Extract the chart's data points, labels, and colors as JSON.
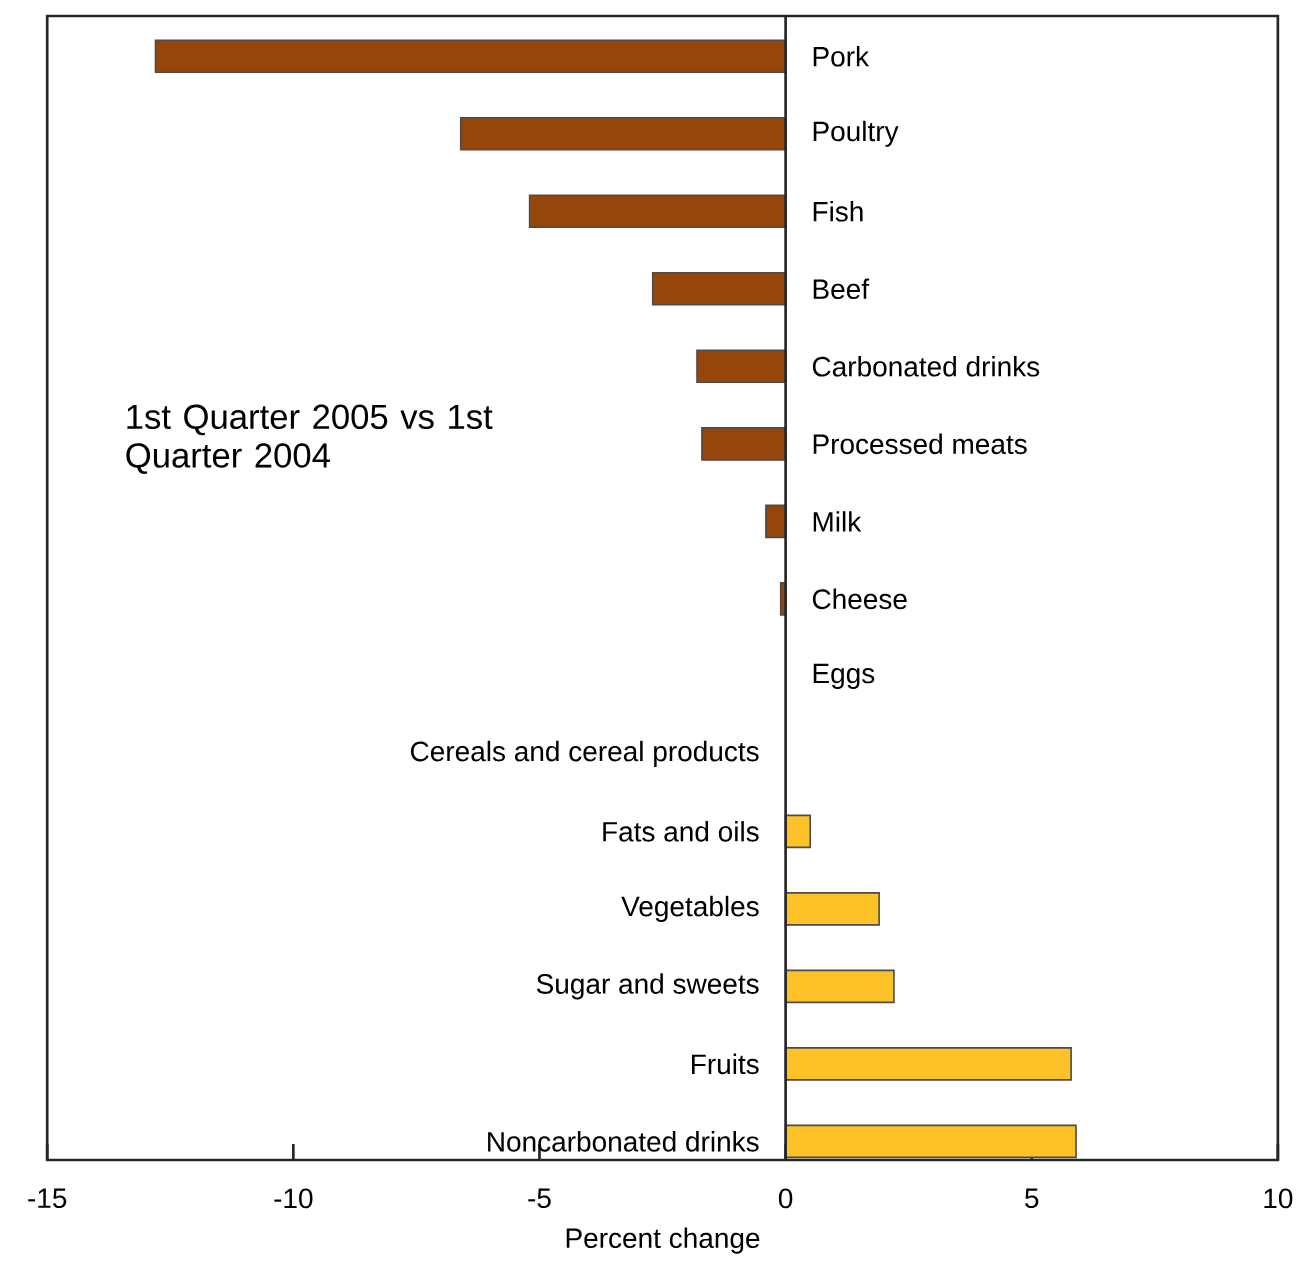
{
  "chart_data": {
    "type": "bar",
    "orientation": "horizontal",
    "xlabel": "Percent change",
    "annotations": [
      "1st Quarter 2005 vs 1st Quarter 2004"
    ],
    "categories": [
      "Pork",
      "Poultry",
      "Fish",
      "Beef",
      "Carbonated drinks",
      "Processed meats",
      "Milk",
      "Cheese",
      "Eggs",
      "Cereals and cereal products",
      "Fats and oils",
      "Vegetables",
      "Sugar and sweets",
      "Fruits",
      "Noncarbonated drinks"
    ],
    "values": [
      -12.8,
      -6.6,
      -5.2,
      -2.7,
      -1.8,
      -1.7,
      -0.4,
      -0.1,
      0,
      0,
      0.5,
      1.9,
      2.2,
      5.8,
      5.9
    ],
    "colors": [
      "#96460a",
      "#96460a",
      "#96460a",
      "#96460a",
      "#96460a",
      "#96460a",
      "#96460a",
      "#96460a",
      "#96460a",
      "#fdc228",
      "#fdc228",
      "#fdc228",
      "#fdc228",
      "#fdc228",
      "#fdc228"
    ],
    "xlim": [
      -15,
      10
    ],
    "xticks": [
      -15,
      -10,
      -5,
      0,
      5,
      10
    ]
  }
}
